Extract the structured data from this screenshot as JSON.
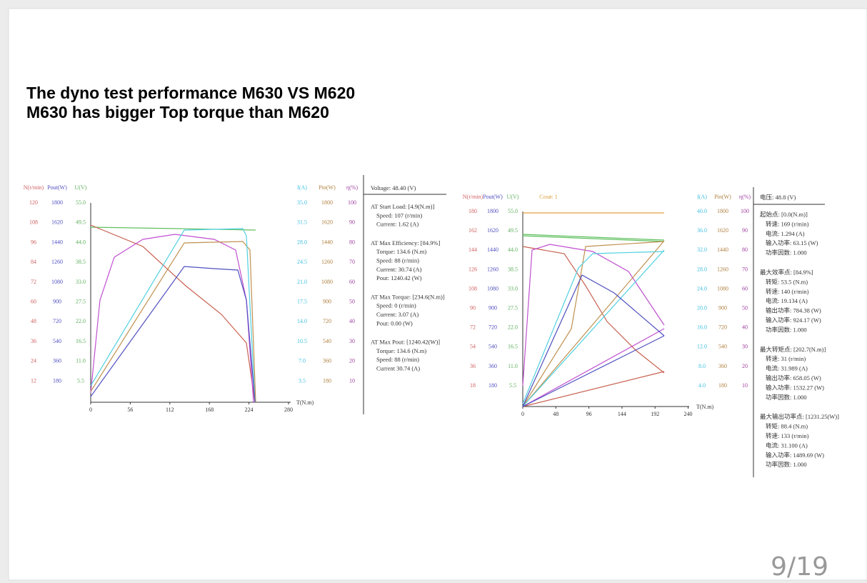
{
  "slide": {
    "title_lines": [
      "The dyno test performance M630  VS  M620",
      "M630 has bigger Top torque than M620"
    ],
    "page_number": "9/19"
  },
  "charts": [
    {
      "headers": [
        "N(r/min)",
        "Pout(W)",
        "U(V)",
        "I(A)",
        "Pin(W)",
        "η(%)"
      ],
      "columns": [
        [
          "120",
          "108",
          "96",
          "84",
          "72",
          "60",
          "48",
          "36",
          "24",
          "12"
        ],
        [
          "1800",
          "1620",
          "1440",
          "1260",
          "1080",
          "900",
          "720",
          "540",
          "360",
          "180"
        ],
        [
          "55.0",
          "49.5",
          "44.0",
          "38.5",
          "33.0",
          "27.5",
          "22.0",
          "16.5",
          "11.0",
          "5.5"
        ],
        [
          "35.0",
          "31.5",
          "28.0",
          "24.5",
          "21.0",
          "17.5",
          "14.0",
          "10.5",
          "7.0",
          "3.5"
        ],
        [
          "1800",
          "1620",
          "1440",
          "1260",
          "1080",
          "900",
          "720",
          "540",
          "360",
          "180"
        ],
        [
          "100",
          "90",
          "80",
          "70",
          "60",
          "50",
          "40",
          "30",
          "20",
          "10"
        ]
      ],
      "x_ticks": [
        "0",
        "56",
        "112",
        "168",
        "224",
        "280"
      ],
      "x_axis_label": "T(N.m)",
      "voltage": "Voltage:  48.40 (V)",
      "info": [
        {
          "heading": "AT Start Load: [4.9(N.m)]",
          "lines": [
            "Speed: 107 (r/min)",
            "Current: 1.62 (A)"
          ]
        },
        {
          "heading": "AT Max Efficiency: [84.9%]",
          "lines": [
            "Torque: 134.6 (N.m)",
            "Speed: 88 (r/min)",
            "Current: 30.74 (A)",
            "Pout: 1240.42 (W)"
          ]
        },
        {
          "heading": "AT Max Torque: [234.6(N.m)]",
          "lines": [
            "Speed: 0 (r/min)",
            "Current: 3.07 (A)",
            "Pout: 0.00 (W)"
          ]
        },
        {
          "heading": "AT Max Pout: [1240.42(W)]",
          "lines": [
            "Torque: 134.6 (N.m)",
            "Speed: 88 (r/min)",
            "Current 30.74 (A)"
          ]
        }
      ]
    },
    {
      "headers": [
        "N(r/min)",
        "Pout(W)",
        "U(V)",
        "I(A)",
        "Pin(W)",
        "η(%)"
      ],
      "extra_header": "Cos⌀: 1",
      "columns": [
        [
          "180",
          "162",
          "144",
          "126",
          "108",
          "90",
          "72",
          "54",
          "36",
          "18"
        ],
        [
          "1800",
          "1620",
          "1440",
          "1260",
          "1080",
          "900",
          "720",
          "540",
          "360",
          "180"
        ],
        [
          "55.0",
          "49.5",
          "44.0",
          "38.5",
          "33.0",
          "27.5",
          "22.0",
          "16.5",
          "11.0",
          "5.5"
        ],
        [
          "40.0",
          "36.0",
          "32.0",
          "28.0",
          "24.0",
          "20.0",
          "16.0",
          "12.0",
          "8.0",
          "4.0"
        ],
        [
          "1800",
          "1620",
          "1440",
          "1260",
          "1080",
          "900",
          "720",
          "540",
          "360",
          "180"
        ],
        [
          "100",
          "90",
          "80",
          "70",
          "60",
          "50",
          "40",
          "30",
          "20",
          "10"
        ]
      ],
      "x_ticks": [
        "0",
        "48",
        "96",
        "144",
        "192",
        "240"
      ],
      "x_axis_label": "T(N.m)",
      "voltage": "电压:  48.8 (V)",
      "info": [
        {
          "heading": "起始点: [0.0(N.m)]",
          "lines": [
            "转速: 169 (r/min)",
            "电流: 1.294 (A)",
            "输入功率: 63.15 (W)",
            "功率因数: 1.000"
          ]
        },
        {
          "heading": "最大效率点: [84.9%]",
          "lines": [
            "转矩: 53.5 (N.m)",
            "转速: 140 (r/min)",
            "电流: 19.134 (A)",
            "输出功率: 784.38 (W)",
            "输入功率: 924.17 (W)",
            "功率因数: 1.000"
          ]
        },
        {
          "heading": "最大转矩点: [202.7(N.m)]",
          "lines": [
            "转速: 31 (r/min)",
            "电流: 31.989 (A)",
            "输出功率: 658.05 (W)",
            "输入功率: 1532.27 (W)",
            "功率因数: 1.000"
          ]
        },
        {
          "heading": "最大输出功率点: [1231.25(W)]",
          "lines": [
            "转矩: 88.4 (N.m)",
            "转速: 133 (r/min)",
            "电流: 31.100 (A)",
            "输入功率: 1489.69 (W)",
            "功率因数: 1.000"
          ]
        }
      ]
    }
  ]
}
